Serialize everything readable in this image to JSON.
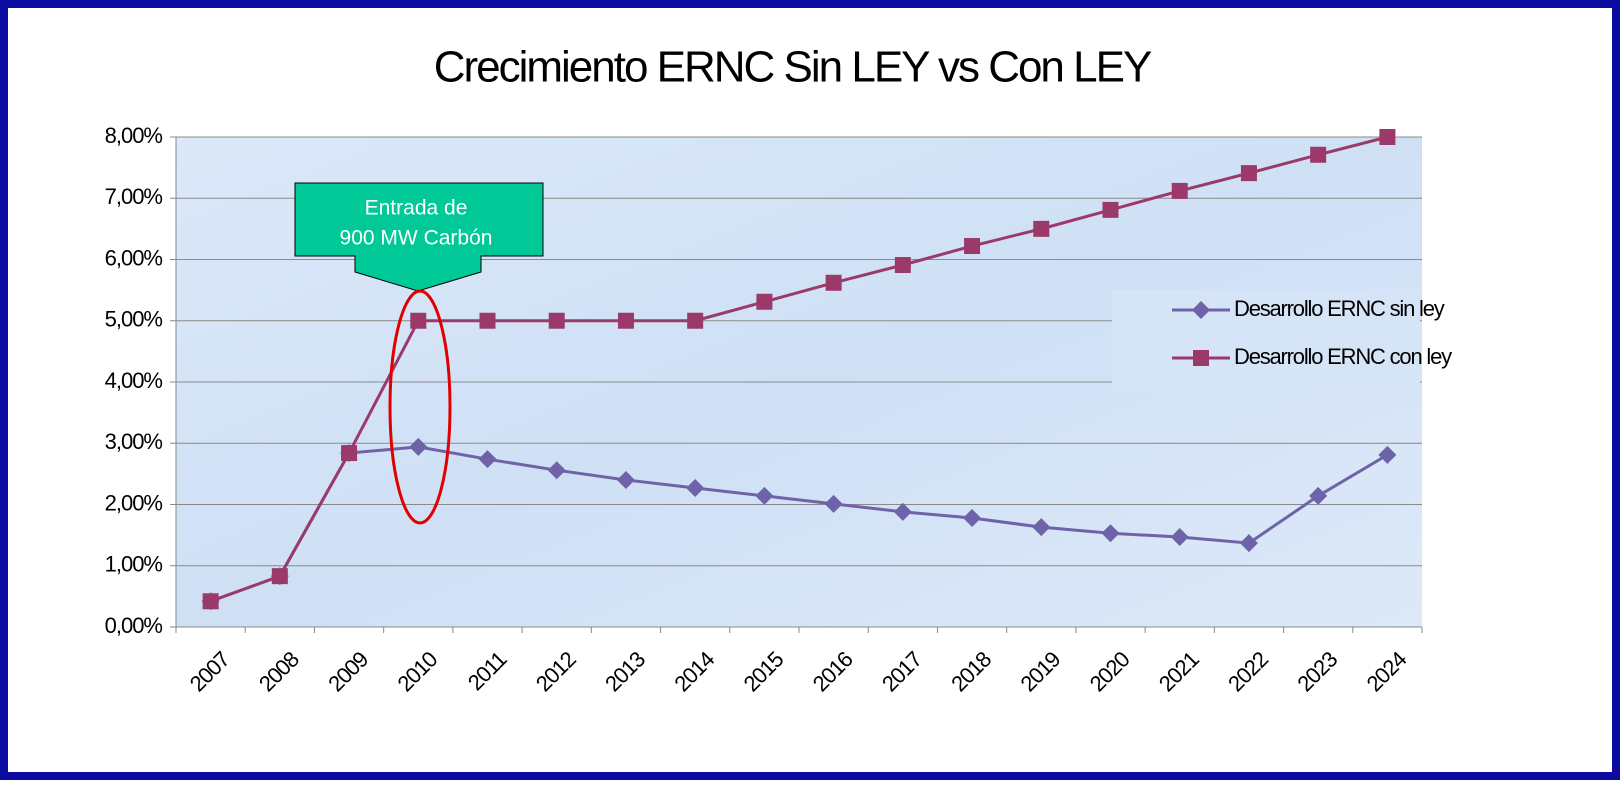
{
  "chart_data": {
    "type": "line",
    "title": "Crecimiento ERNC Sin LEY vs Con LEY",
    "categories": [
      "2007",
      "2008",
      "2009",
      "2010",
      "2011",
      "2012",
      "2013",
      "2014",
      "2015",
      "2016",
      "2017",
      "2018",
      "2019",
      "2020",
      "2021",
      "2022",
      "2023",
      "2024"
    ],
    "series": [
      {
        "name": "Desarrollo ERNC sin ley",
        "color": "#6e63a8",
        "marker": "diamond",
        "values": [
          0.42,
          0.83,
          2.84,
          2.94,
          2.74,
          2.56,
          2.4,
          2.27,
          2.14,
          2.01,
          1.88,
          1.78,
          1.63,
          1.53,
          1.47,
          1.37,
          2.14,
          2.81
        ]
      },
      {
        "name": "Desarrollo ERNC con ley",
        "color": "#9b3a6a",
        "marker": "square",
        "values": [
          0.42,
          0.83,
          2.84,
          5.0,
          5.0,
          5.0,
          5.0,
          5.0,
          5.31,
          5.62,
          5.91,
          6.22,
          6.5,
          6.81,
          7.12,
          7.41,
          7.71,
          8.0
        ]
      }
    ],
    "ylim": [
      0,
      8
    ],
    "yticks": [
      {
        "value": 0,
        "label": "0,00%"
      },
      {
        "value": 1,
        "label": "1,00%"
      },
      {
        "value": 2,
        "label": "2,00%"
      },
      {
        "value": 3,
        "label": "3,00%"
      },
      {
        "value": 4,
        "label": "4,00%"
      },
      {
        "value": 5,
        "label": "5,00%"
      },
      {
        "value": 6,
        "label": "6,00%"
      },
      {
        "value": 7,
        "label": "7,00%"
      },
      {
        "value": 8,
        "label": "8,00%"
      }
    ],
    "grid": true,
    "legend": "right",
    "annotation": [
      "Entrada de",
      "900 MW Carbón"
    ]
  }
}
